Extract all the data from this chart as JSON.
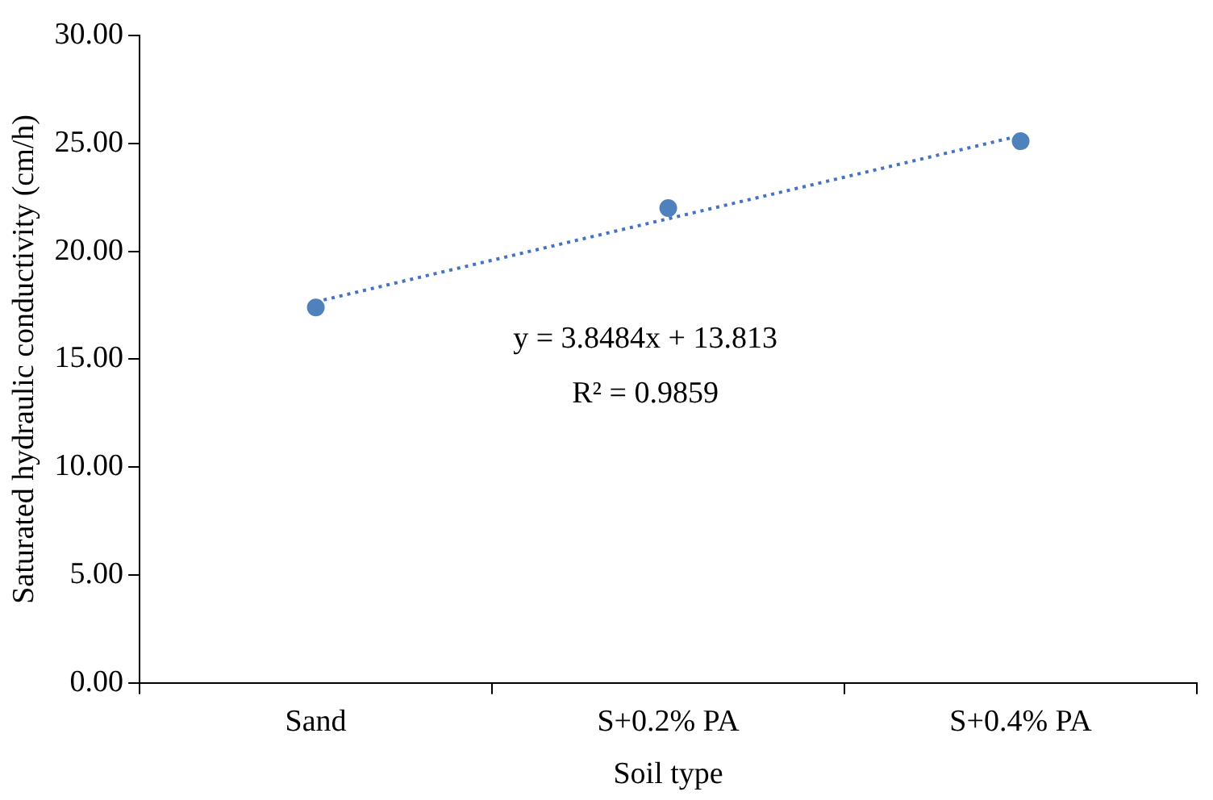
{
  "chart_data": {
    "type": "scatter",
    "xlabel": "Soil type",
    "ylabel": "Saturated hydraulic conductivity (cm/h)",
    "categories": [
      "Sand",
      "S+0.2% PA",
      "S+0.4% PA"
    ],
    "series": [
      {
        "color": "#4f81bd",
        "values": [
          17.4,
          22.0,
          25.1
        ],
        "marker": "circle"
      },
      {
        "type": "line",
        "color": "#4472c4",
        "values": [
          17.66,
          21.51,
          25.36
        ],
        "line_style": "dotted",
        "marker": "none"
      }
    ],
    "ylim": [
      0,
      30
    ],
    "yticks": [
      {
        "value": 0,
        "label": "0.00"
      },
      {
        "value": 5,
        "label": "5.00"
      },
      {
        "value": 10,
        "label": "10.00"
      },
      {
        "value": 15,
        "label": "15.00"
      },
      {
        "value": 20,
        "label": "20.00"
      },
      {
        "value": 25,
        "label": "25.00"
      },
      {
        "value": 30,
        "label": "30.00"
      }
    ],
    "annotations": [
      "y = 3.8484x + 13.813",
      "R² = 0.9859"
    ],
    "grid": false,
    "legend": false
  }
}
